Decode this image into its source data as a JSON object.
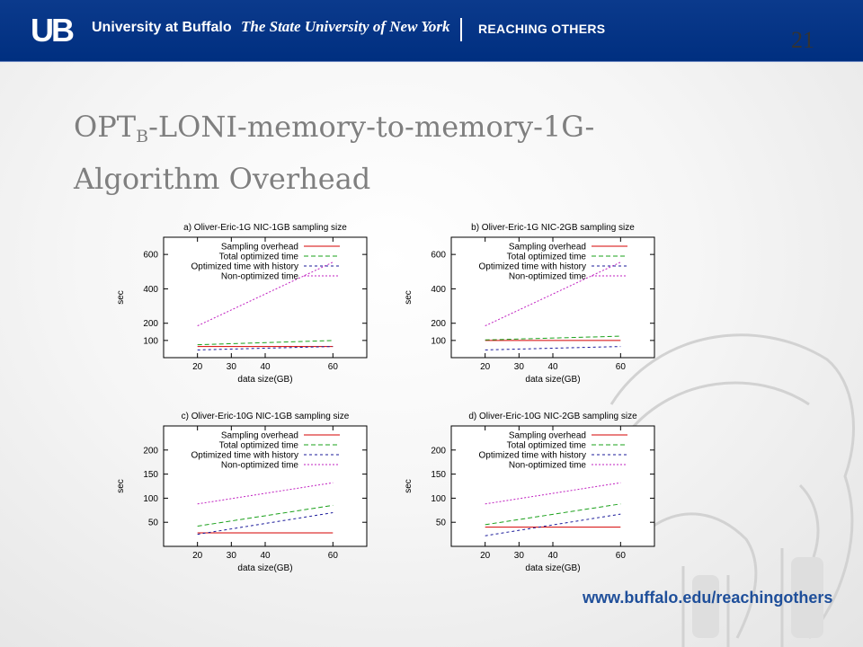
{
  "banner": {
    "logo_text": "UB",
    "university": "University at Buffalo",
    "state": "The State University of New York",
    "tagline": "REACHING OTHERS"
  },
  "slide_number": "21",
  "title": {
    "main_prefix": "OPT",
    "subscript": "B",
    "main_suffix": "-LONI-memory-to-memory-1G-",
    "line2": "Algorithm Overhead"
  },
  "footer": {
    "url": "www.buffalo.edu/reachingothers"
  },
  "colors": {
    "banner": "#002f80",
    "sampling": "#d40000",
    "total": "#1aa01a",
    "history": "#1a1a9a",
    "nonopt": "#c020c0"
  },
  "chart_data": [
    {
      "type": "line",
      "title": "a) Oliver-Eric-1G NIC-1GB sampling size",
      "xlabel": "data size(GB)",
      "ylabel": "sec",
      "xlim": [
        10,
        70
      ],
      "ylim": [
        0,
        700
      ],
      "xticks": [
        20,
        30,
        40,
        60
      ],
      "yticks": [
        100,
        200,
        400,
        600
      ],
      "legend": "top-right",
      "grid": false,
      "series": [
        {
          "name": "Sampling overhead",
          "x": [
            20,
            60
          ],
          "y": [
            65,
            65
          ]
        },
        {
          "name": "Total optimized time",
          "x": [
            20,
            60
          ],
          "y": [
            75,
            100
          ]
        },
        {
          "name": "Optimized time with history",
          "x": [
            20,
            60
          ],
          "y": [
            45,
            65
          ]
        },
        {
          "name": "Non-optimized time",
          "x": [
            20,
            60
          ],
          "y": [
            185,
            555
          ]
        }
      ]
    },
    {
      "type": "line",
      "title": "b) Oliver-Eric-1G NIC-2GB sampling size",
      "xlabel": "data size(GB)",
      "ylabel": "sec",
      "xlim": [
        10,
        70
      ],
      "ylim": [
        0,
        700
      ],
      "xticks": [
        20,
        30,
        40,
        60
      ],
      "yticks": [
        100,
        200,
        400,
        600
      ],
      "legend": "top-right",
      "grid": false,
      "series": [
        {
          "name": "Sampling overhead",
          "x": [
            20,
            60
          ],
          "y": [
            100,
            100
          ]
        },
        {
          "name": "Total optimized time",
          "x": [
            20,
            60
          ],
          "y": [
            103,
            125
          ]
        },
        {
          "name": "Optimized time with history",
          "x": [
            20,
            60
          ],
          "y": [
            45,
            65
          ]
        },
        {
          "name": "Non-optimized time",
          "x": [
            20,
            60
          ],
          "y": [
            185,
            555
          ]
        }
      ]
    },
    {
      "type": "line",
      "title": "c) Oliver-Eric-10G NIC-1GB sampling size",
      "xlabel": "data size(GB)",
      "ylabel": "sec",
      "xlim": [
        10,
        70
      ],
      "ylim": [
        0,
        250
      ],
      "xticks": [
        20,
        30,
        40,
        60
      ],
      "yticks": [
        50,
        100,
        150,
        200
      ],
      "legend": "top-right",
      "grid": false,
      "series": [
        {
          "name": "Sampling overhead",
          "x": [
            20,
            60
          ],
          "y": [
            28,
            28
          ]
        },
        {
          "name": "Total optimized time",
          "x": [
            20,
            60
          ],
          "y": [
            42,
            85
          ]
        },
        {
          "name": "Optimized time with history",
          "x": [
            20,
            60
          ],
          "y": [
            25,
            70
          ]
        },
        {
          "name": "Non-optimized time",
          "x": [
            20,
            60
          ],
          "y": [
            88,
            132
          ]
        }
      ]
    },
    {
      "type": "line",
      "title": "d) Oliver-Eric-10G NIC-2GB sampling size",
      "xlabel": "data size(GB)",
      "ylabel": "sec",
      "xlim": [
        10,
        70
      ],
      "ylim": [
        0,
        250
      ],
      "xticks": [
        20,
        30,
        40,
        60
      ],
      "yticks": [
        50,
        100,
        150,
        200
      ],
      "legend": "top-right",
      "grid": false,
      "series": [
        {
          "name": "Sampling overhead",
          "x": [
            20,
            60
          ],
          "y": [
            40,
            40
          ]
        },
        {
          "name": "Total optimized time",
          "x": [
            20,
            60
          ],
          "y": [
            45,
            88
          ]
        },
        {
          "name": "Optimized time with history",
          "x": [
            20,
            60
          ],
          "y": [
            22,
            67
          ]
        },
        {
          "name": "Non-optimized time",
          "x": [
            20,
            60
          ],
          "y": [
            88,
            132
          ]
        }
      ]
    }
  ]
}
